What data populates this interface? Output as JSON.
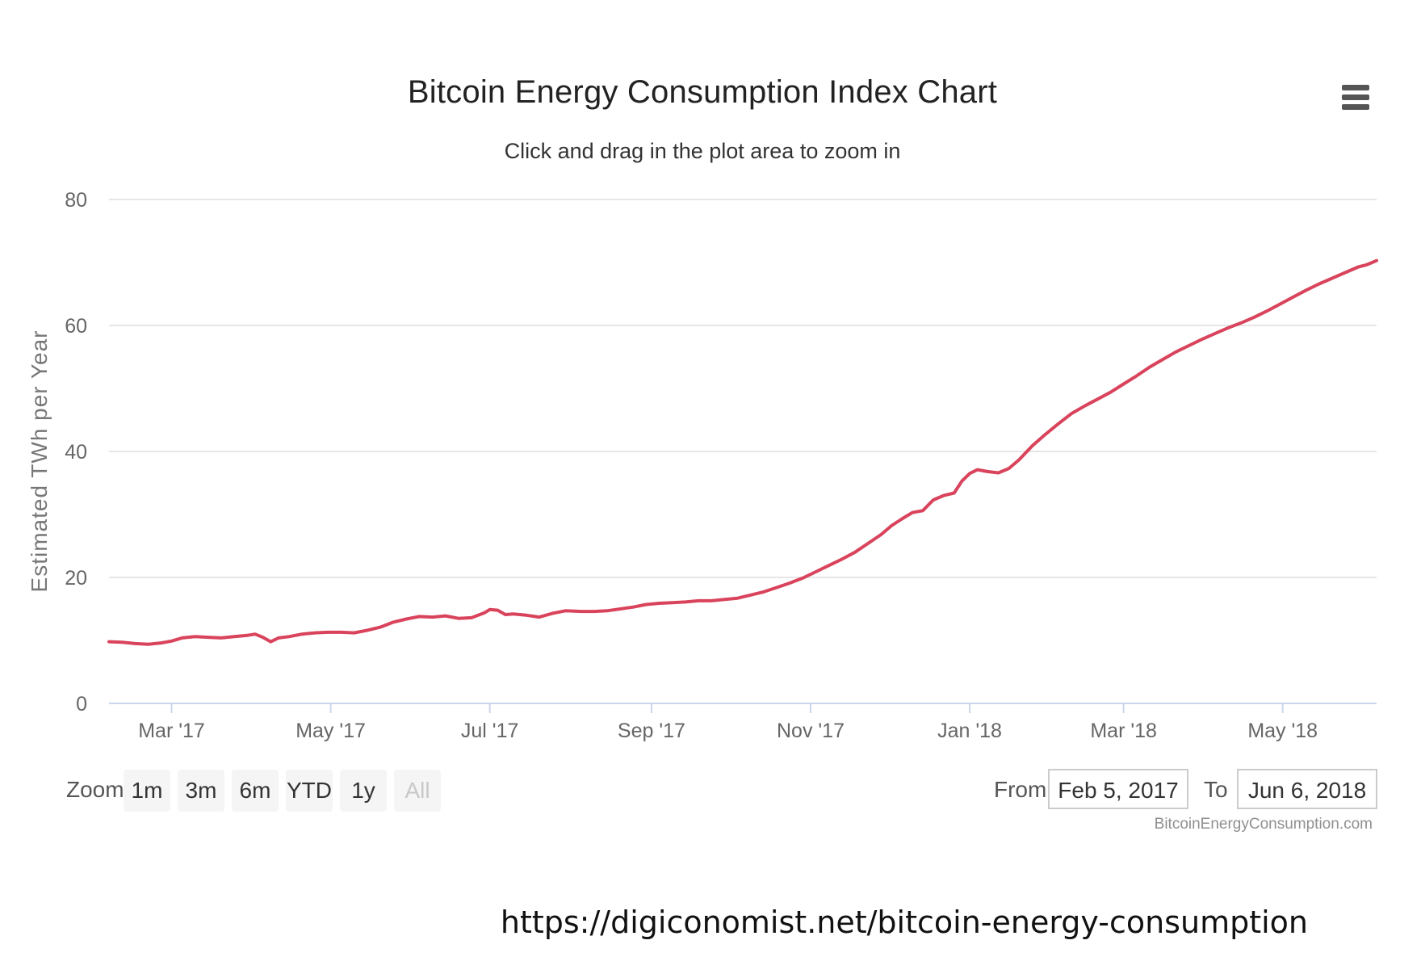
{
  "chart_data": {
    "type": "line",
    "title": "Bitcoin Energy Consumption Index Chart",
    "subtitle": "Click and drag in the plot area to zoom in",
    "ylabel": "Estimated TWh per Year",
    "xlabel": "",
    "ylim": [
      0,
      80
    ],
    "yticks": [
      "0",
      "20",
      "40",
      "60",
      "80"
    ],
    "xlim": [
      "2017-02-05",
      "2018-06-06"
    ],
    "xticks": [
      {
        "date": "2017-03-01",
        "label": "Mar '17"
      },
      {
        "date": "2017-05-01",
        "label": "May '17"
      },
      {
        "date": "2017-07-01",
        "label": "Jul '17"
      },
      {
        "date": "2017-09-01",
        "label": "Sep '17"
      },
      {
        "date": "2017-11-01",
        "label": "Nov '17"
      },
      {
        "date": "2018-01-01",
        "label": "Jan '18"
      },
      {
        "date": "2018-03-01",
        "label": "Mar '18"
      },
      {
        "date": "2018-05-01",
        "label": "May '18"
      }
    ],
    "grid": true,
    "legend": "none",
    "series": [
      {
        "color": "#d9435b",
        "points": [
          [
            "2017-02-05",
            9.8
          ],
          [
            "2017-02-10",
            9.7
          ],
          [
            "2017-02-15",
            9.5
          ],
          [
            "2017-02-20",
            9.4
          ],
          [
            "2017-02-25",
            9.6
          ],
          [
            "2017-03-01",
            9.9
          ],
          [
            "2017-03-05",
            10.4
          ],
          [
            "2017-03-10",
            10.6
          ],
          [
            "2017-03-15",
            10.5
          ],
          [
            "2017-03-20",
            10.4
          ],
          [
            "2017-03-25",
            10.6
          ],
          [
            "2017-03-30",
            10.8
          ],
          [
            "2017-04-02",
            11.0
          ],
          [
            "2017-04-05",
            10.5
          ],
          [
            "2017-04-08",
            9.8
          ],
          [
            "2017-04-11",
            10.4
          ],
          [
            "2017-04-15",
            10.6
          ],
          [
            "2017-04-20",
            11.0
          ],
          [
            "2017-04-25",
            11.2
          ],
          [
            "2017-04-30",
            11.3
          ],
          [
            "2017-05-05",
            11.3
          ],
          [
            "2017-05-10",
            11.2
          ],
          [
            "2017-05-15",
            11.6
          ],
          [
            "2017-05-20",
            12.1
          ],
          [
            "2017-05-25",
            12.9
          ],
          [
            "2017-05-30",
            13.4
          ],
          [
            "2017-06-04",
            13.8
          ],
          [
            "2017-06-09",
            13.7
          ],
          [
            "2017-06-14",
            13.9
          ],
          [
            "2017-06-19",
            13.5
          ],
          [
            "2017-06-24",
            13.6
          ],
          [
            "2017-06-29",
            14.4
          ],
          [
            "2017-07-01",
            14.9
          ],
          [
            "2017-07-04",
            14.8
          ],
          [
            "2017-07-07",
            14.1
          ],
          [
            "2017-07-10",
            14.2
          ],
          [
            "2017-07-15",
            14.0
          ],
          [
            "2017-07-20",
            13.7
          ],
          [
            "2017-07-25",
            14.3
          ],
          [
            "2017-07-30",
            14.7
          ],
          [
            "2017-08-05",
            14.6
          ],
          [
            "2017-08-10",
            14.6
          ],
          [
            "2017-08-15",
            14.7
          ],
          [
            "2017-08-20",
            15.0
          ],
          [
            "2017-08-25",
            15.3
          ],
          [
            "2017-08-30",
            15.7
          ],
          [
            "2017-09-04",
            15.9
          ],
          [
            "2017-09-09",
            16.0
          ],
          [
            "2017-09-14",
            16.1
          ],
          [
            "2017-09-19",
            16.3
          ],
          [
            "2017-09-24",
            16.3
          ],
          [
            "2017-09-29",
            16.5
          ],
          [
            "2017-10-04",
            16.7
          ],
          [
            "2017-10-09",
            17.2
          ],
          [
            "2017-10-14",
            17.7
          ],
          [
            "2017-10-19",
            18.4
          ],
          [
            "2017-10-24",
            19.1
          ],
          [
            "2017-10-29",
            19.9
          ],
          [
            "2017-11-03",
            20.9
          ],
          [
            "2017-11-08",
            21.9
          ],
          [
            "2017-11-13",
            22.9
          ],
          [
            "2017-11-18",
            24.0
          ],
          [
            "2017-11-23",
            25.4
          ],
          [
            "2017-11-28",
            26.8
          ],
          [
            "2017-12-02",
            28.2
          ],
          [
            "2017-12-06",
            29.3
          ],
          [
            "2017-12-10",
            30.3
          ],
          [
            "2017-12-14",
            30.6
          ],
          [
            "2017-12-18",
            32.3
          ],
          [
            "2017-12-22",
            33.0
          ],
          [
            "2017-12-26",
            33.4
          ],
          [
            "2017-12-29",
            35.3
          ],
          [
            "2018-01-01",
            36.5
          ],
          [
            "2018-01-04",
            37.1
          ],
          [
            "2018-01-08",
            36.8
          ],
          [
            "2018-01-12",
            36.6
          ],
          [
            "2018-01-16",
            37.3
          ],
          [
            "2018-01-20",
            38.7
          ],
          [
            "2018-01-25",
            40.9
          ],
          [
            "2018-01-30",
            42.7
          ],
          [
            "2018-02-04",
            44.4
          ],
          [
            "2018-02-09",
            46.0
          ],
          [
            "2018-02-14",
            47.2
          ],
          [
            "2018-02-19",
            48.3
          ],
          [
            "2018-02-24",
            49.4
          ],
          [
            "2018-03-01",
            50.7
          ],
          [
            "2018-03-06",
            52.0
          ],
          [
            "2018-03-11",
            53.4
          ],
          [
            "2018-03-16",
            54.6
          ],
          [
            "2018-03-21",
            55.8
          ],
          [
            "2018-03-26",
            56.8
          ],
          [
            "2018-03-31",
            57.8
          ],
          [
            "2018-04-05",
            58.7
          ],
          [
            "2018-04-10",
            59.6
          ],
          [
            "2018-04-15",
            60.4
          ],
          [
            "2018-04-20",
            61.3
          ],
          [
            "2018-04-25",
            62.3
          ],
          [
            "2018-04-30",
            63.4
          ],
          [
            "2018-05-05",
            64.5
          ],
          [
            "2018-05-10",
            65.6
          ],
          [
            "2018-05-15",
            66.6
          ],
          [
            "2018-05-20",
            67.5
          ],
          [
            "2018-05-25",
            68.4
          ],
          [
            "2018-05-30",
            69.3
          ],
          [
            "2018-06-02",
            69.6
          ],
          [
            "2018-06-06",
            70.3
          ]
        ]
      }
    ]
  },
  "menu": {
    "icon": "hamburger-menu-icon"
  },
  "zoom": {
    "label": "Zoom",
    "buttons": [
      "1m",
      "3m",
      "6m",
      "YTD",
      "1y",
      "All"
    ],
    "disabled": "All"
  },
  "range": {
    "from_label": "From",
    "from_value": "Feb 5, 2017",
    "to_label": "To",
    "to_value": "Jun 6, 2018"
  },
  "credits": "BitcoinEnergyConsumption.com",
  "source_url": "https://digiconomist.net/bitcoin-energy-consumption"
}
